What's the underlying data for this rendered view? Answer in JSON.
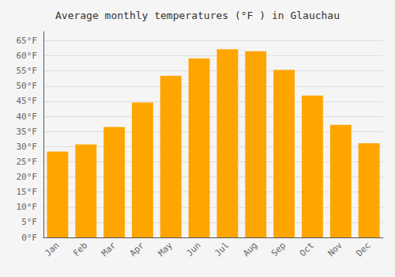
{
  "chart_data": {
    "type": "bar",
    "title": "Average monthly temperatures (°F ) in Glauchau",
    "categories": [
      "Jan",
      "Feb",
      "Mar",
      "Apr",
      "May",
      "Jun",
      "Jul",
      "Aug",
      "Sep",
      "Oct",
      "Nov",
      "Dec"
    ],
    "values": [
      28.4,
      30.7,
      36.5,
      44.6,
      53.4,
      59.2,
      62.2,
      61.5,
      55.4,
      46.9,
      37.2,
      31.1
    ],
    "color": "#FFA500",
    "ylim": [
      0,
      68
    ],
    "yticks": [
      {
        "value": 0,
        "label": "0°F"
      },
      {
        "value": 5,
        "label": "5°F"
      },
      {
        "value": 10,
        "label": "10°F"
      },
      {
        "value": 15,
        "label": "15°F"
      },
      {
        "value": 20,
        "label": "20°F"
      },
      {
        "value": 25,
        "label": "25°F"
      },
      {
        "value": 30,
        "label": "30°F"
      },
      {
        "value": 35,
        "label": "35°F"
      },
      {
        "value": 40,
        "label": "40°F"
      },
      {
        "value": 45,
        "label": "45°F"
      },
      {
        "value": 50,
        "label": "50°F"
      },
      {
        "value": 55,
        "label": "55°F"
      },
      {
        "value": 60,
        "label": "60°F"
      },
      {
        "value": 65,
        "label": "65°F"
      }
    ],
    "grid": true
  }
}
